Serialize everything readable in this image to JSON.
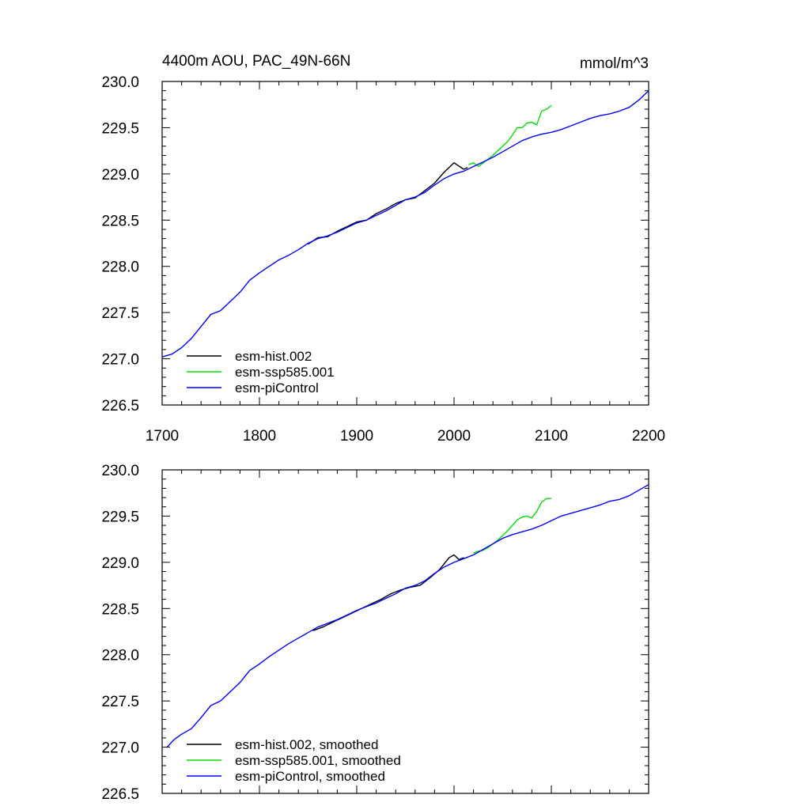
{
  "chart_data": [
    {
      "type": "line",
      "title": "4400m AOU, PAC_49N-66N",
      "units": "mmol/m^3",
      "xlim": [
        1700,
        2200
      ],
      "ylim": [
        226.5,
        230.0
      ],
      "xticks": [
        1700,
        1800,
        1900,
        2000,
        2100,
        2200
      ],
      "xtick_labels": [
        "1700",
        "1800",
        "1900",
        "2000",
        "2100",
        "2200"
      ],
      "yticks": [
        226.5,
        227.0,
        227.5,
        228.0,
        228.5,
        229.0,
        229.5,
        230.0
      ],
      "ytick_labels": [
        "226.5",
        "227.0",
        "227.5",
        "228.0",
        "228.5",
        "229.0",
        "229.5",
        "230.0"
      ],
      "legend_position": "bottom-left",
      "grid": false,
      "series": [
        {
          "name": "esm-hist.002",
          "color": "#000000",
          "x": [
            1850,
            1860,
            1870,
            1880,
            1890,
            1900,
            1910,
            1920,
            1930,
            1940,
            1950,
            1960,
            1970,
            1980,
            1990,
            2000,
            2010,
            2014
          ],
          "y": [
            228.24,
            228.31,
            228.32,
            228.38,
            228.43,
            228.48,
            228.5,
            228.57,
            228.62,
            228.68,
            228.72,
            228.74,
            228.82,
            228.9,
            229.02,
            229.12,
            229.05,
            229.07
          ]
        },
        {
          "name": "esm-ssp585.001",
          "color": "#00e000",
          "x": [
            2015,
            2020,
            2025,
            2030,
            2035,
            2040,
            2045,
            2050,
            2055,
            2060,
            2065,
            2070,
            2075,
            2080,
            2085,
            2090,
            2095,
            2100
          ],
          "y": [
            229.1,
            229.12,
            229.08,
            229.12,
            229.16,
            229.2,
            229.25,
            229.3,
            229.35,
            229.42,
            229.5,
            229.5,
            229.55,
            229.56,
            229.53,
            229.68,
            229.7,
            229.74
          ]
        },
        {
          "name": "esm-piControl",
          "color": "#0000ff",
          "x": [
            1700,
            1710,
            1720,
            1730,
            1740,
            1750,
            1760,
            1770,
            1780,
            1790,
            1800,
            1810,
            1820,
            1830,
            1840,
            1850,
            1860,
            1870,
            1880,
            1890,
            1900,
            1910,
            1920,
            1930,
            1940,
            1950,
            1960,
            1970,
            1980,
            1990,
            2000,
            2010,
            2020,
            2030,
            2040,
            2050,
            2060,
            2070,
            2080,
            2090,
            2100,
            2110,
            2120,
            2130,
            2140,
            2150,
            2160,
            2170,
            2180,
            2190,
            2200
          ],
          "y": [
            227.02,
            227.05,
            227.12,
            227.22,
            227.35,
            227.48,
            227.52,
            227.62,
            227.72,
            227.85,
            227.93,
            228.0,
            228.07,
            228.12,
            228.18,
            228.25,
            228.3,
            228.33,
            228.37,
            228.42,
            228.47,
            228.5,
            228.55,
            228.6,
            228.66,
            228.72,
            228.75,
            228.8,
            228.88,
            228.95,
            229.0,
            229.03,
            229.08,
            229.13,
            229.18,
            229.24,
            229.3,
            229.36,
            229.4,
            229.43,
            229.45,
            229.48,
            229.52,
            229.56,
            229.6,
            229.63,
            229.65,
            229.68,
            229.72,
            229.8,
            229.9
          ]
        }
      ]
    },
    {
      "type": "line",
      "xlim": [
        1700,
        2200
      ],
      "ylim": [
        226.5,
        230.0
      ],
      "xticks": [
        1700,
        1800,
        1900,
        2000,
        2100,
        2200
      ],
      "yticks": [
        226.5,
        227.0,
        227.5,
        228.0,
        228.5,
        229.0,
        229.5,
        230.0
      ],
      "ytick_labels": [
        "226.5",
        "227.0",
        "227.5",
        "228.0",
        "228.5",
        "229.0",
        "229.5",
        "230.0"
      ],
      "legend_position": "bottom-left",
      "grid": false,
      "series": [
        {
          "name": "esm-hist.002, smoothed",
          "color": "#000000",
          "x": [
            1855,
            1865,
            1875,
            1885,
            1895,
            1905,
            1915,
            1925,
            1935,
            1945,
            1955,
            1965,
            1975,
            1985,
            1995,
            2000,
            2005,
            2010
          ],
          "y": [
            228.26,
            228.3,
            228.35,
            228.4,
            228.45,
            228.5,
            228.55,
            228.6,
            228.66,
            228.7,
            228.73,
            228.75,
            228.83,
            228.92,
            229.05,
            229.08,
            229.03,
            229.05
          ]
        },
        {
          "name": "esm-ssp585.001, smoothed",
          "color": "#00e000",
          "x": [
            2020,
            2025,
            2030,
            2035,
            2040,
            2045,
            2050,
            2055,
            2060,
            2065,
            2070,
            2075,
            2080,
            2085,
            2090,
            2095,
            2100
          ],
          "y": [
            229.1,
            229.12,
            229.13,
            229.16,
            229.2,
            229.24,
            229.29,
            229.34,
            229.4,
            229.46,
            229.49,
            229.5,
            229.48,
            229.55,
            229.65,
            229.69,
            229.69
          ]
        },
        {
          "name": "esm-piControl, smoothed",
          "color": "#0000ff",
          "x": [
            1705,
            1712,
            1720,
            1730,
            1740,
            1750,
            1760,
            1770,
            1780,
            1790,
            1800,
            1810,
            1820,
            1830,
            1840,
            1850,
            1860,
            1870,
            1880,
            1890,
            1900,
            1910,
            1920,
            1930,
            1940,
            1950,
            1960,
            1970,
            1980,
            1990,
            2000,
            2010,
            2020,
            2030,
            2040,
            2050,
            2060,
            2070,
            2080,
            2090,
            2100,
            2110,
            2120,
            2130,
            2140,
            2150,
            2160,
            2170,
            2180,
            2190,
            2200
          ],
          "y": [
            227.0,
            227.08,
            227.14,
            227.2,
            227.32,
            227.45,
            227.5,
            227.6,
            227.7,
            227.83,
            227.9,
            227.98,
            228.05,
            228.12,
            228.18,
            228.24,
            228.3,
            228.34,
            228.38,
            228.43,
            228.48,
            228.52,
            228.56,
            228.61,
            228.66,
            228.72,
            228.75,
            228.8,
            228.88,
            228.95,
            229.0,
            229.04,
            229.08,
            229.14,
            229.2,
            229.26,
            229.3,
            229.33,
            229.36,
            229.4,
            229.45,
            229.5,
            229.53,
            229.56,
            229.59,
            229.62,
            229.66,
            229.68,
            229.72,
            229.78,
            229.84
          ]
        }
      ]
    }
  ]
}
